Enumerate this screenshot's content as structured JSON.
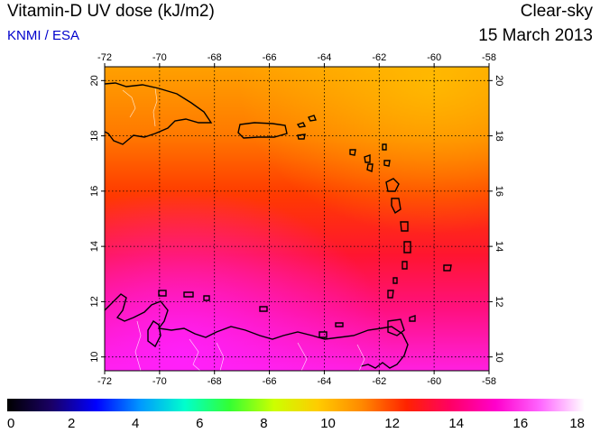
{
  "header": {
    "title": "Vitamin-D UV dose (kJ/m2)",
    "source": "KNMI / ESA",
    "condition": "Clear-sky",
    "date": "15 March 2013"
  },
  "map": {
    "lon_range": [
      -72,
      -58
    ],
    "lat_range": [
      9.5,
      20.5
    ],
    "lon_ticks": [
      "-72",
      "-70",
      "-68",
      "-66",
      "-64",
      "-62",
      "-60",
      "-58"
    ],
    "lat_ticks": [
      "10",
      "12",
      "14",
      "16",
      "18",
      "20"
    ]
  },
  "colorbar": {
    "ticks": [
      "0",
      "2",
      "4",
      "6",
      "8",
      "10",
      "12",
      "14",
      "16",
      "18"
    ],
    "range": [
      0,
      18
    ]
  },
  "colors": {
    "bar_stops": [
      "#000000",
      "#1a0066",
      "#0000ff",
      "#0099ff",
      "#00ffcc",
      "#33ff33",
      "#ccff00",
      "#ffcc00",
      "#ff8800",
      "#ff2200",
      "#ff0066",
      "#ff00cc",
      "#ff66ff",
      "#ffffff"
    ]
  }
}
